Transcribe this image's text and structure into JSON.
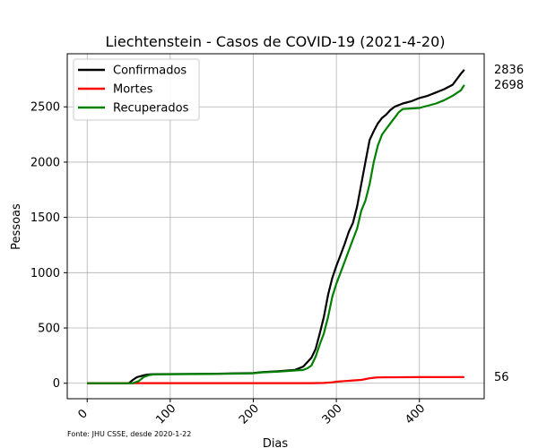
{
  "chart_data": {
    "type": "line",
    "title": "Liechtenstein - Casos de COVID-19 (2021-4-20)",
    "xlabel": "Dias",
    "ylabel": "Pessoas",
    "xlim": [
      -24,
      478
    ],
    "ylim": [
      -140,
      2980
    ],
    "xticks": [
      0,
      100,
      200,
      300,
      400
    ],
    "yticks": [
      0,
      500,
      1000,
      1500,
      2000,
      2500
    ],
    "grid": true,
    "legend": "top-left",
    "source": "Fonte: JHU CSSE, desde 2020-1-22",
    "series": [
      {
        "name": "Confirmados",
        "color": "#000000",
        "end_label": "2836",
        "points": [
          [
            0,
            0
          ],
          [
            50,
            0
          ],
          [
            55,
            30
          ],
          [
            60,
            55
          ],
          [
            65,
            65
          ],
          [
            70,
            75
          ],
          [
            75,
            80
          ],
          [
            80,
            82
          ],
          [
            100,
            83
          ],
          [
            150,
            85
          ],
          [
            200,
            92
          ],
          [
            210,
            100
          ],
          [
            230,
            108
          ],
          [
            250,
            120
          ],
          [
            260,
            150
          ],
          [
            270,
            230
          ],
          [
            275,
            310
          ],
          [
            280,
            450
          ],
          [
            285,
            600
          ],
          [
            290,
            800
          ],
          [
            295,
            950
          ],
          [
            300,
            1060
          ],
          [
            305,
            1160
          ],
          [
            310,
            1260
          ],
          [
            315,
            1370
          ],
          [
            320,
            1450
          ],
          [
            325,
            1600
          ],
          [
            330,
            1800
          ],
          [
            335,
            2000
          ],
          [
            340,
            2200
          ],
          [
            345,
            2280
          ],
          [
            350,
            2350
          ],
          [
            355,
            2400
          ],
          [
            360,
            2430
          ],
          [
            365,
            2470
          ],
          [
            370,
            2500
          ],
          [
            380,
            2530
          ],
          [
            390,
            2550
          ],
          [
            400,
            2580
          ],
          [
            410,
            2600
          ],
          [
            420,
            2630
          ],
          [
            430,
            2660
          ],
          [
            440,
            2700
          ],
          [
            450,
            2800
          ],
          [
            454,
            2836
          ]
        ]
      },
      {
        "name": "Mortes",
        "color": "#ff0000",
        "end_label": "56",
        "points": [
          [
            0,
            0
          ],
          [
            60,
            0
          ],
          [
            65,
            1
          ],
          [
            100,
            1
          ],
          [
            200,
            1
          ],
          [
            270,
            1
          ],
          [
            285,
            3
          ],
          [
            295,
            8
          ],
          [
            300,
            14
          ],
          [
            310,
            20
          ],
          [
            320,
            25
          ],
          [
            330,
            30
          ],
          [
            340,
            45
          ],
          [
            345,
            50
          ],
          [
            350,
            53
          ],
          [
            400,
            55
          ],
          [
            454,
            56
          ]
        ]
      },
      {
        "name": "Recuperados",
        "color": "#008000",
        "end_label": "2698",
        "points": [
          [
            0,
            0
          ],
          [
            55,
            0
          ],
          [
            62,
            20
          ],
          [
            68,
            55
          ],
          [
            75,
            75
          ],
          [
            80,
            80
          ],
          [
            100,
            82
          ],
          [
            150,
            84
          ],
          [
            200,
            90
          ],
          [
            210,
            98
          ],
          [
            230,
            105
          ],
          [
            250,
            115
          ],
          [
            260,
            120
          ],
          [
            265,
            135
          ],
          [
            270,
            160
          ],
          [
            275,
            240
          ],
          [
            280,
            350
          ],
          [
            285,
            450
          ],
          [
            290,
            600
          ],
          [
            295,
            780
          ],
          [
            300,
            900
          ],
          [
            305,
            1000
          ],
          [
            310,
            1100
          ],
          [
            315,
            1200
          ],
          [
            320,
            1300
          ],
          [
            325,
            1400
          ],
          [
            330,
            1560
          ],
          [
            335,
            1650
          ],
          [
            340,
            1800
          ],
          [
            345,
            2000
          ],
          [
            350,
            2150
          ],
          [
            355,
            2250
          ],
          [
            360,
            2300
          ],
          [
            365,
            2350
          ],
          [
            370,
            2400
          ],
          [
            375,
            2450
          ],
          [
            380,
            2480
          ],
          [
            400,
            2490
          ],
          [
            410,
            2510
          ],
          [
            420,
            2530
          ],
          [
            430,
            2560
          ],
          [
            440,
            2600
          ],
          [
            450,
            2650
          ],
          [
            454,
            2698
          ]
        ]
      }
    ]
  }
}
